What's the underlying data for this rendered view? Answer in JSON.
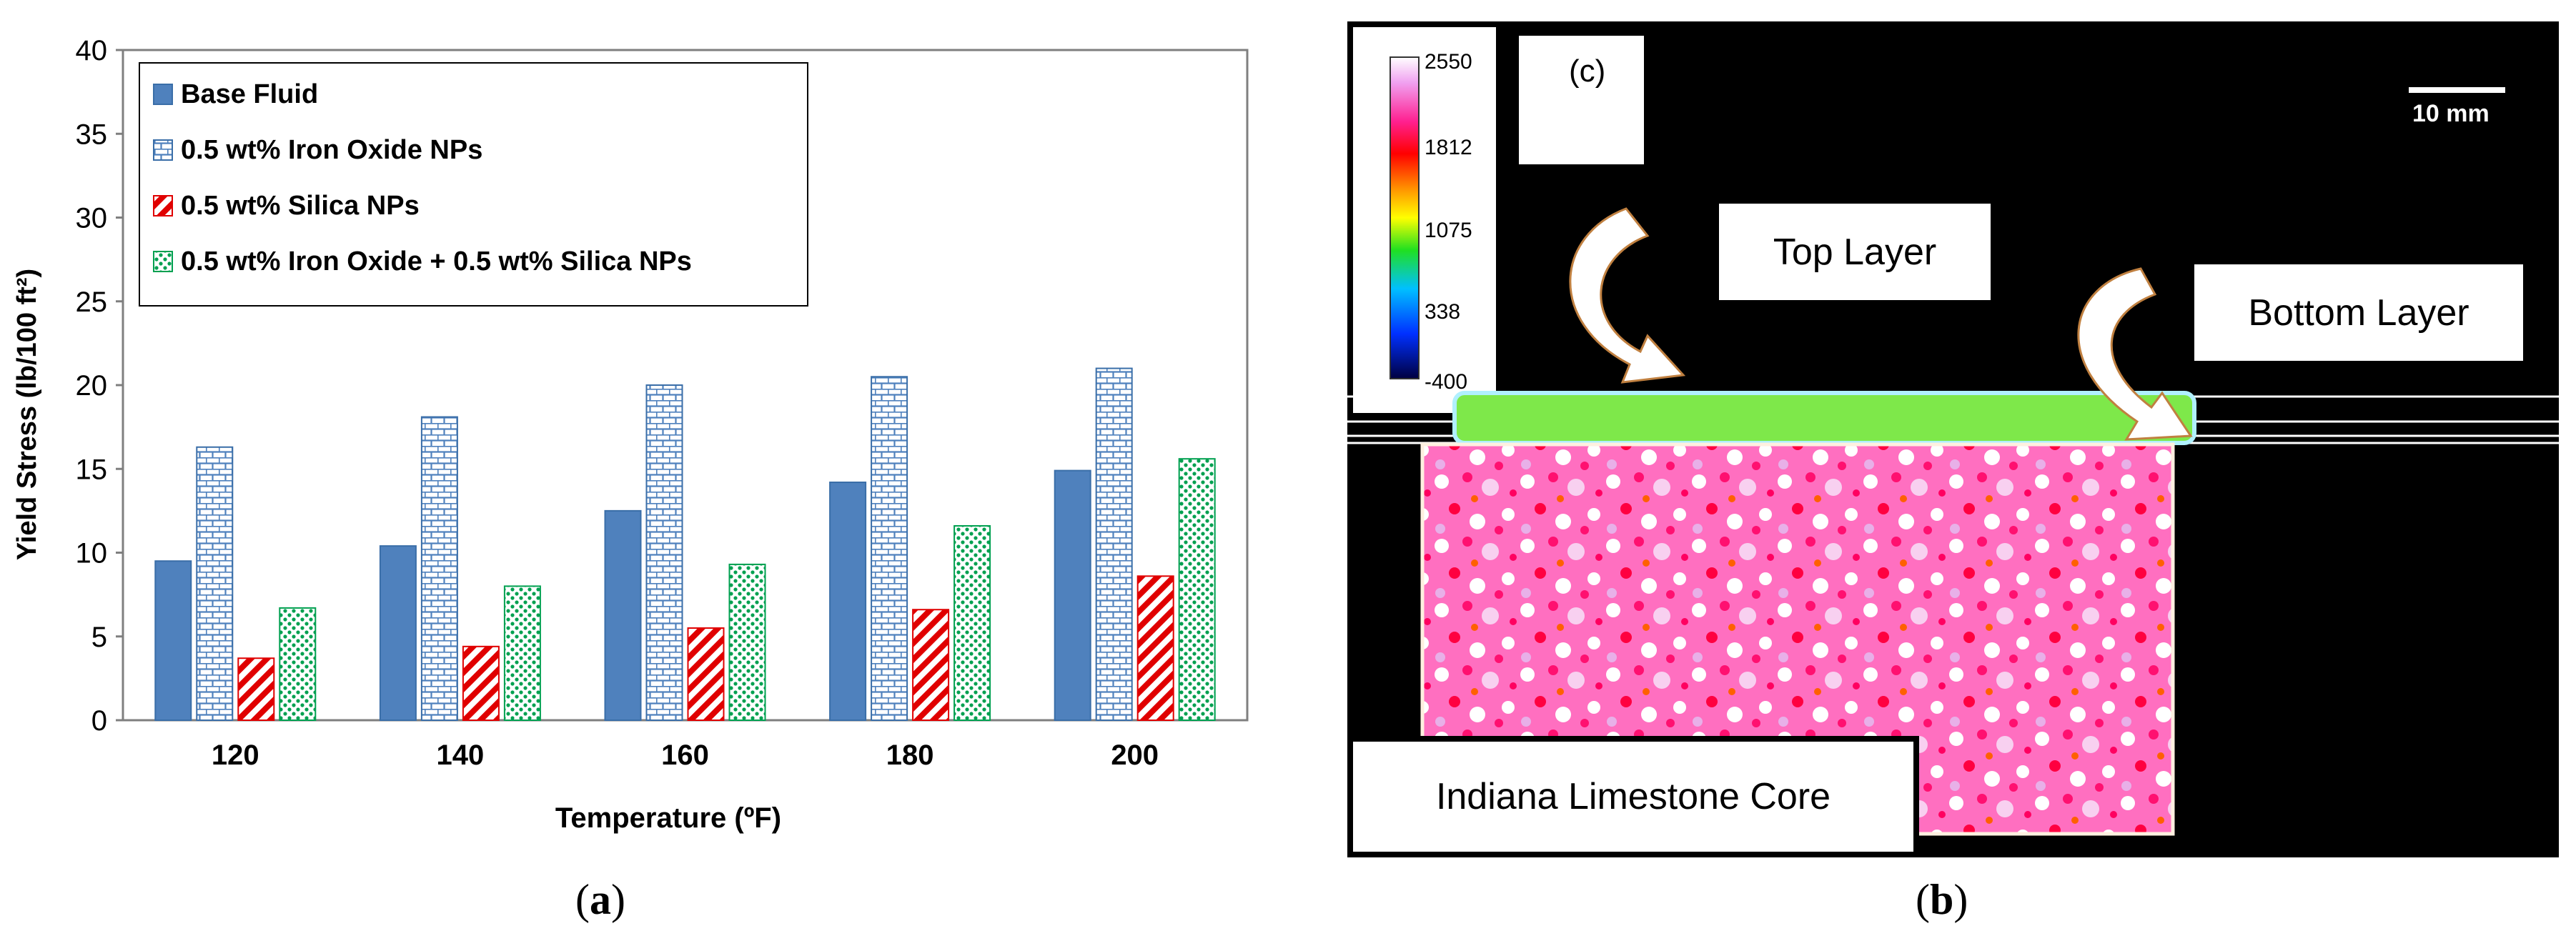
{
  "chart_data": {
    "type": "bar",
    "title": "",
    "xlabel": "Temperature (ºF)",
    "ylabel": "Yield Stress (lb/100 ft²)",
    "categories": [
      "120",
      "140",
      "160",
      "180",
      "200"
    ],
    "ylim": [
      0,
      40
    ],
    "yticks": [
      0,
      5,
      10,
      15,
      20,
      25,
      30,
      35,
      40
    ],
    "grid": false,
    "legend_position": "top-left",
    "series": [
      {
        "name": "Base Fluid",
        "values": [
          9.5,
          10.4,
          12.5,
          14.2,
          14.9
        ],
        "color": "#4f81bd",
        "pattern": "solid"
      },
      {
        "name": "0.5 wt% Iron Oxide NPs",
        "values": [
          16.3,
          18.1,
          20.0,
          20.5,
          21.0
        ],
        "color": "#4f81bd",
        "pattern": "brick"
      },
      {
        "name": "0.5 wt% Silica NPs",
        "values": [
          3.7,
          4.4,
          5.5,
          6.6,
          8.6
        ],
        "color": "#e00000",
        "pattern": "diagonal"
      },
      {
        "name": "0.5 wt% Iron Oxide + 0.5 wt% Silica NPs",
        "values": [
          6.7,
          8.0,
          9.3,
          11.6,
          15.6
        ],
        "color": "#00a050",
        "pattern": "dots"
      }
    ]
  },
  "panel_b": {
    "label": "(c)",
    "scale_bar": "10 mm",
    "colorbar_ticks": [
      "2550",
      "1812",
      "1075",
      "338",
      "-400"
    ],
    "top_layer": "Top Layer",
    "bottom_layer": "Bottom Layer",
    "core": "Indiana Limestone Core"
  },
  "captions": {
    "a_open": "(",
    "a_letter": "a",
    "a_close": ")",
    "b_open": "(",
    "b_letter": "b",
    "b_close": ")"
  }
}
